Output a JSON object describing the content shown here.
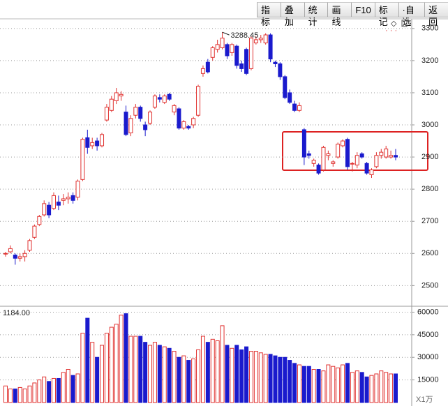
{
  "toolbar": [
    "指标",
    "叠加",
    "统计",
    "画线",
    "F10",
    "标记",
    "·自选",
    "返回"
  ],
  "chart_data": {
    "type": "candlestick",
    "ohlc": [
      [
        2598,
        2605,
        2590,
        2600
      ],
      [
        2605,
        2625,
        2600,
        2615
      ],
      [
        2595,
        2600,
        2565,
        2585
      ],
      [
        2585,
        2600,
        2575,
        2590
      ],
      [
        2590,
        2610,
        2575,
        2600
      ],
      [
        2610,
        2645,
        2605,
        2640
      ],
      [
        2650,
        2690,
        2645,
        2685
      ],
      [
        2690,
        2720,
        2685,
        2715
      ],
      [
        2720,
        2765,
        2715,
        2755
      ],
      [
        2750,
        2760,
        2710,
        2720
      ],
      [
        2740,
        2790,
        2735,
        2780
      ],
      [
        2760,
        2780,
        2735,
        2750
      ],
      [
        2765,
        2785,
        2750,
        2770
      ],
      [
        2770,
        2790,
        2755,
        2775
      ],
      [
        2780,
        2790,
        2755,
        2765
      ],
      [
        2775,
        2830,
        2765,
        2825
      ],
      [
        2830,
        2960,
        2825,
        2955
      ],
      [
        2960,
        2985,
        2910,
        2930
      ],
      [
        2935,
        2960,
        2925,
        2945
      ],
      [
        2950,
        2960,
        2920,
        2935
      ],
      [
        2935,
        2975,
        2930,
        2970
      ],
      [
        3015,
        3065,
        3010,
        3055
      ],
      [
        3045,
        3090,
        3040,
        3080
      ],
      [
        3075,
        3115,
        3065,
        3100
      ],
      [
        3090,
        3105,
        3075,
        3095
      ],
      [
        3040,
        3060,
        2965,
        2970
      ],
      [
        2975,
        3030,
        2965,
        3020
      ],
      [
        3030,
        3065,
        3020,
        3055
      ],
      [
        3055,
        3060,
        3010,
        3020
      ],
      [
        3000,
        3010,
        2965,
        2985
      ],
      [
        3005,
        3045,
        3000,
        3040
      ],
      [
        3055,
        3095,
        3050,
        3090
      ],
      [
        3085,
        3095,
        3070,
        3080
      ],
      [
        3070,
        3095,
        3065,
        3090
      ],
      [
        3095,
        3100,
        3075,
        3080
      ],
      [
        3040,
        3065,
        3030,
        3060
      ],
      [
        3050,
        3055,
        2985,
        2990
      ],
      [
        2990,
        3015,
        2985,
        3010
      ],
      [
        2995,
        3000,
        2985,
        2990
      ],
      [
        3000,
        3025,
        2990,
        3020
      ],
      [
        3030,
        3125,
        3025,
        3120
      ],
      [
        3160,
        3185,
        3150,
        3175
      ],
      [
        3195,
        3205,
        3160,
        3165
      ],
      [
        3210,
        3245,
        3200,
        3240
      ],
      [
        3235,
        3265,
        3225,
        3250
      ],
      [
        3240,
        3288.45,
        3235,
        3270
      ],
      [
        3250,
        3255,
        3205,
        3215
      ],
      [
        3225,
        3255,
        3215,
        3250
      ],
      [
        3245,
        3250,
        3175,
        3185
      ],
      [
        3190,
        3200,
        3165,
        3175
      ],
      [
        3235,
        3240,
        3155,
        3160
      ],
      [
        3175,
        3275,
        3170,
        3270
      ],
      [
        3255,
        3275,
        3250,
        3265
      ],
      [
        3265,
        3280,
        3255,
        3270
      ],
      [
        3255,
        3285,
        3250,
        3280
      ],
      [
        3280,
        3285,
        3195,
        3205
      ],
      [
        3195,
        3200,
        3180,
        3190
      ],
      [
        3190,
        3195,
        3140,
        3150
      ],
      [
        3150,
        3155,
        3080,
        3085
      ],
      [
        3100,
        3110,
        3065,
        3070
      ],
      [
        3065,
        3075,
        3040,
        3045
      ],
      [
        3045,
        3070,
        3040,
        3060
      ],
      [
        2985,
        2990,
        2875,
        2900
      ],
      [
        2910,
        2920,
        2895,
        2905
      ],
      [
        2880,
        2895,
        2870,
        2890
      ],
      [
        2875,
        2880,
        2845,
        2850
      ],
      [
        2860,
        2935,
        2855,
        2930
      ],
      [
        2905,
        2920,
        2890,
        2910
      ],
      [
        2880,
        2890,
        2870,
        2885
      ],
      [
        2900,
        2945,
        2895,
        2940
      ],
      [
        2935,
        2955,
        2930,
        2950
      ],
      [
        2955,
        2960,
        2860,
        2870
      ],
      [
        2880,
        2885,
        2855,
        2880
      ],
      [
        2875,
        2915,
        2865,
        2905
      ],
      [
        2910,
        2915,
        2895,
        2900
      ],
      [
        2880,
        2885,
        2845,
        2850
      ],
      [
        2845,
        2865,
        2835,
        2860
      ],
      [
        2870,
        2915,
        2865,
        2905
      ],
      [
        2905,
        2925,
        2895,
        2915
      ],
      [
        2900,
        2935,
        2895,
        2925
      ],
      [
        2900,
        2920,
        2895,
        2905
      ],
      [
        2905,
        2925,
        2890,
        2900
      ]
    ],
    "peak_index": 45,
    "up_color": "#e0312f",
    "down_color": "#1a1acd",
    "ylim": [
      2440,
      3330
    ],
    "yticks": [
      2500,
      2600,
      2700,
      2800,
      2900,
      3000,
      3100,
      3200,
      3300
    ],
    "grid": true,
    "volume": {
      "label": "1184.00",
      "unit": "X1万",
      "values": [
        11000,
        9000,
        9000,
        10000,
        9000,
        11000,
        13000,
        15000,
        17000,
        14000,
        16000,
        16000,
        20000,
        22000,
        18000,
        19000,
        46000,
        56000,
        40000,
        30000,
        38000,
        46000,
        50000,
        52000,
        58000,
        59000,
        44000,
        44000,
        44000,
        40000,
        38000,
        40000,
        38000,
        37000,
        36000,
        34000,
        30000,
        31000,
        28000,
        29000,
        35000,
        44000,
        40000,
        42000,
        41000,
        51000,
        38000,
        36000,
        38000,
        35000,
        37000,
        34000,
        34000,
        33000,
        32000,
        32000,
        31000,
        30000,
        30000,
        28000,
        26000,
        25000,
        24000,
        24000,
        22000,
        22000,
        21000,
        25000,
        24000,
        23000,
        25000,
        26000,
        20000,
        21000,
        20000,
        17000,
        18000,
        19000,
        21000,
        20000,
        19000,
        19000
      ],
      "ylim": [
        0,
        63000
      ],
      "yticks": [
        15000,
        30000,
        45000,
        60000
      ]
    }
  }
}
